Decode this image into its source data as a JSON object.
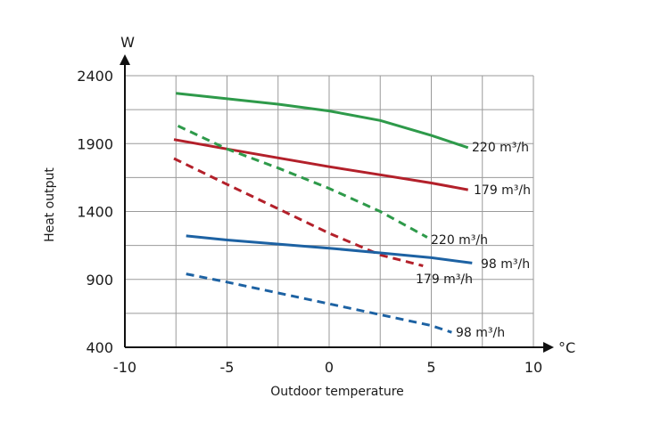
{
  "chart_data": {
    "type": "line",
    "title": "",
    "xlabel": "Outdoor temperature",
    "ylabel": "Heat output",
    "x_unit": "°C",
    "y_unit": "W",
    "xlim": [
      -10,
      10
    ],
    "ylim": [
      400,
      2400
    ],
    "x_ticks": [
      -10,
      -5,
      0,
      5,
      10
    ],
    "y_ticks": [
      400,
      900,
      1400,
      1900,
      2400
    ],
    "x_ticks_text": [
      "-10",
      "-5",
      "0",
      "5",
      "10"
    ],
    "y_ticks_text": [
      "400",
      "900",
      "1400",
      "1900",
      "2400"
    ],
    "x_grid": [
      -7.5,
      -5,
      -2.5,
      0,
      2.5,
      5,
      7.5,
      10
    ],
    "y_grid": [
      650,
      900,
      1150,
      1400,
      1650,
      1900,
      2150,
      2400
    ],
    "grid": true,
    "series": [
      {
        "name": "220 m³/h",
        "color": "#2e9a4a",
        "dashed": false,
        "x": [
          -7.5,
          -5,
          -2.5,
          0,
          2.5,
          5,
          6.8
        ],
        "y": [
          2270,
          2230,
          2190,
          2140,
          2070,
          1960,
          1870
        ]
      },
      {
        "name": "179 m³/h",
        "color": "#b3202a",
        "dashed": false,
        "x": [
          -7.6,
          -5,
          -2.5,
          0,
          2.5,
          5,
          6.8
        ],
        "y": [
          1930,
          1860,
          1795,
          1730,
          1670,
          1610,
          1560
        ]
      },
      {
        "name": "220 m³/h",
        "color": "#2e9a4a",
        "dashed": true,
        "x": [
          -7.4,
          -5,
          -2.5,
          0,
          2.5,
          4.8
        ],
        "y": [
          2030,
          1860,
          1720,
          1570,
          1400,
          1210
        ]
      },
      {
        "name": "179 m³/h",
        "color": "#b3202a",
        "dashed": true,
        "x": [
          -7.6,
          -5,
          -2.5,
          0,
          2.5,
          4.6
        ],
        "y": [
          1790,
          1600,
          1420,
          1240,
          1080,
          1000
        ]
      },
      {
        "name": "98 m³/h",
        "color": "#1d62a3",
        "dashed": false,
        "x": [
          -7,
          -5,
          -2.5,
          0,
          2.5,
          5,
          7
        ],
        "y": [
          1220,
          1190,
          1160,
          1130,
          1095,
          1060,
          1020
        ]
      },
      {
        "name": "98 m³/h",
        "color": "#1d62a3",
        "dashed": true,
        "x": [
          -7,
          -5,
          -2.5,
          0,
          2.5,
          5,
          6
        ],
        "y": [
          940,
          880,
          800,
          720,
          640,
          560,
          510
        ]
      }
    ],
    "series_labels": [
      "220 m³/h",
      "179 m³/h",
      "220 m³/h",
      "179 m³/h",
      "98 m³/h",
      "98 m³/h"
    ]
  }
}
